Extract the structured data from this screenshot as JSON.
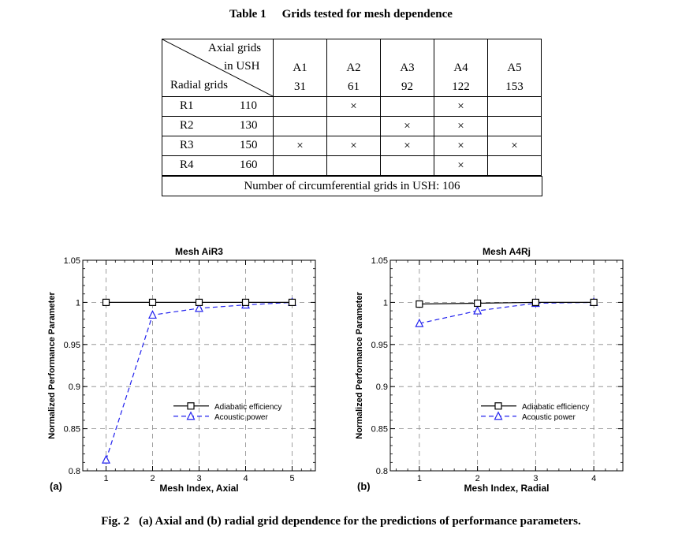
{
  "table": {
    "number": "Table 1",
    "title": "Grids tested for mesh dependence",
    "header": {
      "axial_line1": "Axial grids",
      "axial_line2": "in USH",
      "radial": "Radial grids"
    },
    "columns": [
      {
        "name": "A1",
        "value": "31"
      },
      {
        "name": "A2",
        "value": "61"
      },
      {
        "name": "A3",
        "value": "92"
      },
      {
        "name": "A4",
        "value": "122"
      },
      {
        "name": "A5",
        "value": "153"
      }
    ],
    "rows": [
      {
        "name": "R1",
        "value": "110",
        "marks": [
          "",
          "×",
          "",
          "×",
          ""
        ]
      },
      {
        "name": "R2",
        "value": "130",
        "marks": [
          "",
          "",
          "×",
          "×",
          ""
        ]
      },
      {
        "name": "R3",
        "value": "150",
        "marks": [
          "×",
          "×",
          "×",
          "×",
          "×"
        ]
      },
      {
        "name": "R4",
        "value": "160",
        "marks": [
          "",
          "",
          "",
          "×",
          ""
        ]
      }
    ],
    "footer": "Number of circumferential grids in USH: 106"
  },
  "chart_data": [
    {
      "type": "line",
      "title": "Mesh AiR3",
      "panel_label": "(a)",
      "xlabel": "Mesh Index, Axial",
      "ylabel": "Normalized Performance Parameter",
      "x": [
        1,
        2,
        3,
        4,
        5
      ],
      "xlim": [
        0.5,
        5.5
      ],
      "ylim": [
        0.8,
        1.05
      ],
      "yticks": [
        "0.8",
        "0.85",
        "0.9",
        "0.95",
        "1",
        "1.05"
      ],
      "xticks": [
        "1",
        "2",
        "3",
        "4",
        "5"
      ],
      "grid": true,
      "legend_position": "lower-right",
      "series": [
        {
          "name": "Adiabatic efficiency",
          "values": [
            1.0,
            1.0,
            1.0,
            1.0,
            1.0
          ],
          "color": "#000000",
          "marker": "square",
          "line": "solid"
        },
        {
          "name": "Acoustic power",
          "values": [
            0.813,
            0.985,
            0.993,
            0.997,
            1.0
          ],
          "color": "#2222ee",
          "marker": "triangle",
          "line": "dashed"
        }
      ]
    },
    {
      "type": "line",
      "title": "Mesh A4Rj",
      "panel_label": "(b)",
      "xlabel": "Mesh Index, Radial",
      "ylabel": "Normalized Performance Parameter",
      "x": [
        1,
        2,
        3,
        4
      ],
      "xlim": [
        0.5,
        4.5
      ],
      "ylim": [
        0.8,
        1.05
      ],
      "yticks": [
        "0.8",
        "0.85",
        "0.9",
        "0.95",
        "1",
        "1.05"
      ],
      "xticks": [
        "1",
        "2",
        "3",
        "4"
      ],
      "grid": true,
      "legend_position": "lower-right",
      "series": [
        {
          "name": "Adiabatic efficiency",
          "values": [
            0.998,
            0.999,
            1.0,
            1.0
          ],
          "color": "#000000",
          "marker": "square",
          "line": "solid"
        },
        {
          "name": "Acoustic power",
          "values": [
            0.975,
            0.99,
            0.999,
            1.0
          ],
          "color": "#2222ee",
          "marker": "triangle",
          "line": "dashed"
        }
      ]
    }
  ],
  "caption": {
    "label": "Fig. 2",
    "text": "(a) Axial and (b) radial grid dependence for the predictions of performance parameters."
  }
}
